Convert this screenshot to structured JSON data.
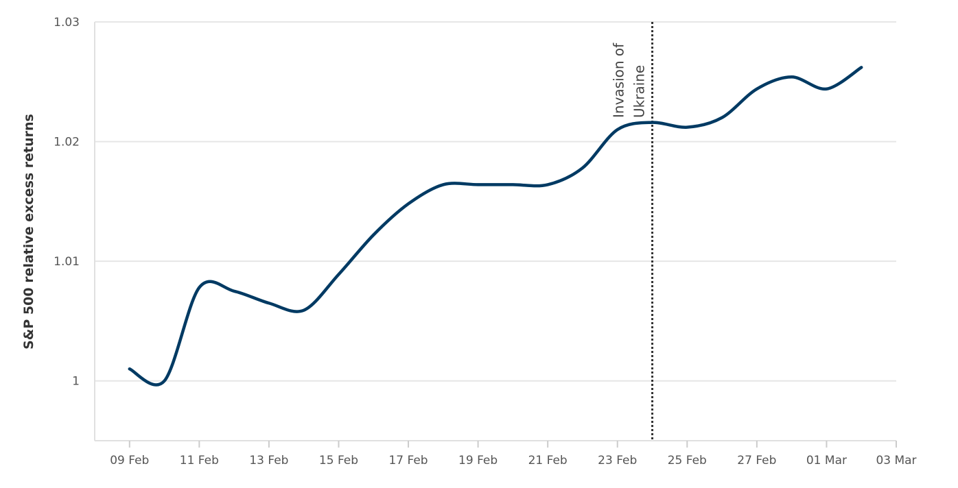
{
  "chart_data": {
    "type": "line",
    "y_label": "S&P 500 relative excess returns",
    "x": [
      "09 Feb",
      "10 Feb",
      "11 Feb",
      "12 Feb",
      "13 Feb",
      "14 Feb",
      "15 Feb",
      "16 Feb",
      "17 Feb",
      "18 Feb",
      "19 Feb",
      "20 Feb",
      "21 Feb",
      "22 Feb",
      "23 Feb",
      "24 Feb",
      "25 Feb",
      "26 Feb",
      "27 Feb",
      "28 Feb",
      "01 Mar",
      "02 Mar"
    ],
    "series": [
      {
        "color": "#003a63",
        "values": [
          1.001,
          1.0,
          1.0078,
          1.0075,
          1.0065,
          1.0059,
          1.0089,
          1.0122,
          1.0148,
          1.0164,
          1.0164,
          1.0164,
          1.0164,
          1.0178,
          1.021,
          1.0216,
          1.0212,
          1.022,
          1.0244,
          1.0254,
          1.0244,
          1.0262
        ]
      }
    ],
    "xlim": [
      "08 Feb",
      "03 Mar"
    ],
    "xticks": [
      "09 Feb",
      "11 Feb",
      "13 Feb",
      "15 Feb",
      "17 Feb",
      "19 Feb",
      "21 Feb",
      "23 Feb",
      "25 Feb",
      "27 Feb",
      "01 Mar",
      "03 Mar"
    ],
    "ylim": [
      0.995,
      1.03
    ],
    "yticks": [
      1,
      1.01,
      1.02,
      1.03
    ],
    "grid": true,
    "annotation": {
      "x": "24 Feb",
      "lines": [
        "Invasion of",
        "Ukraine"
      ]
    }
  }
}
